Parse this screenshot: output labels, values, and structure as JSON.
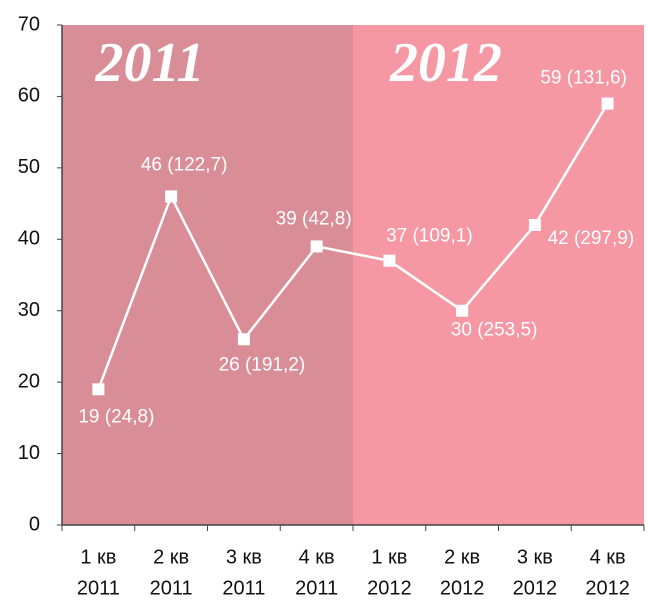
{
  "chart_data": {
    "type": "line",
    "categories": [
      [
        "1 кв",
        "2011"
      ],
      [
        "2 кв",
        "2011"
      ],
      [
        "3 кв",
        "2011"
      ],
      [
        "4 кв",
        "2011"
      ],
      [
        "1 кв",
        "2012"
      ],
      [
        "2 кв",
        "2012"
      ],
      [
        "3 кв",
        "2012"
      ],
      [
        "4 кв",
        "2012"
      ]
    ],
    "series": [
      {
        "color": "#ffffff",
        "values": [
          19,
          46,
          26,
          39,
          37,
          30,
          42,
          59
        ],
        "value_labels": [
          "19 (24,8)",
          "46 (122,7)",
          "26 (191,2)",
          "39 (42,8)",
          "37 (109,1)",
          "30 (253,5)",
          "42 (297,9)",
          "59 (131,6)"
        ]
      }
    ],
    "annotations": [
      {
        "text": "2011",
        "color": "#d98d96"
      },
      {
        "text": "2012",
        "color": "#f598a4"
      }
    ],
    "ylim": [
      0,
      70
    ],
    "yticks": [
      0,
      10,
      20,
      30,
      40,
      50,
      60,
      70
    ],
    "grid": false
  }
}
